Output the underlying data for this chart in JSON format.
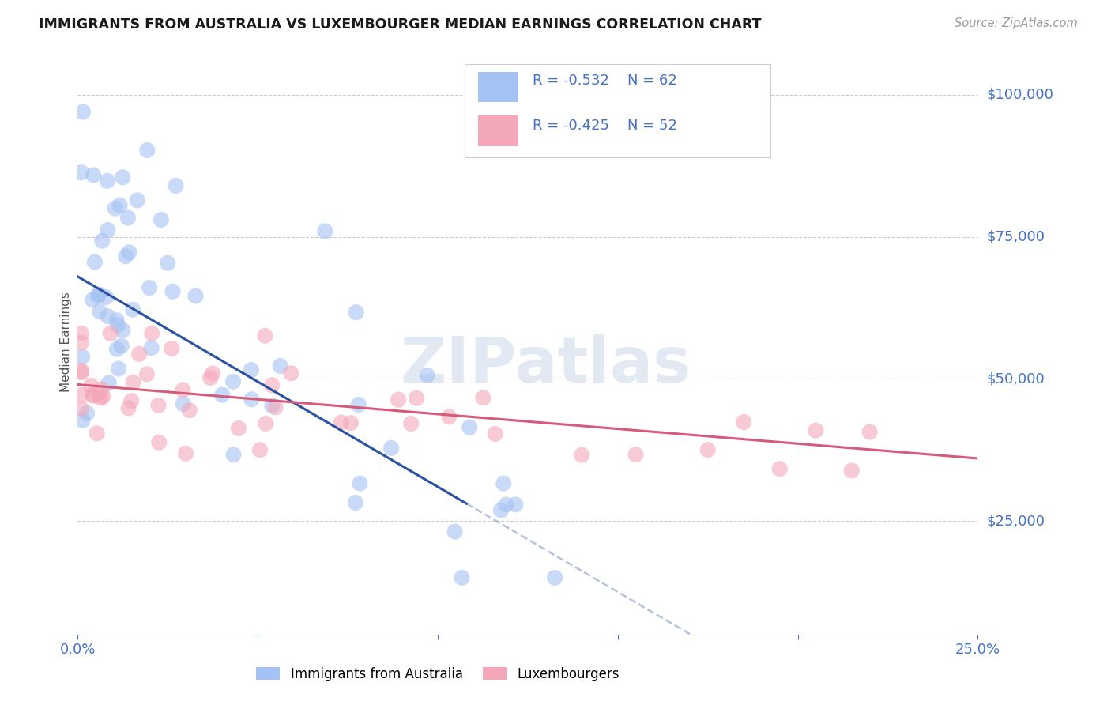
{
  "title": "IMMIGRANTS FROM AUSTRALIA VS LUXEMBOURGER MEDIAN EARNINGS CORRELATION CHART",
  "source": "Source: ZipAtlas.com",
  "ylabel": "Median Earnings",
  "xmin": 0.0,
  "xmax": 0.25,
  "ymin": 5000,
  "ymax": 108000,
  "blue_color": "#a4c2f4",
  "pink_color": "#f4a7b9",
  "line_blue": "#2a52a0",
  "line_pink": "#d45c7a",
  "blue_R": "-0.532",
  "blue_N": "62",
  "pink_R": "-0.425",
  "pink_N": "52",
  "legend_label_blue": "Immigrants from Australia",
  "legend_label_pink": "Luxembourgers",
  "watermark": "ZIPatlas",
  "grid_color": "#cccccc",
  "blue_intercept": 68000,
  "blue_slope": -370000,
  "pink_intercept": 49000,
  "pink_slope": -52000,
  "blue_line_solid_end": 0.108,
  "blue_line_dashed_end": 0.25,
  "pink_line_start": 0.0,
  "pink_line_end": 0.25
}
